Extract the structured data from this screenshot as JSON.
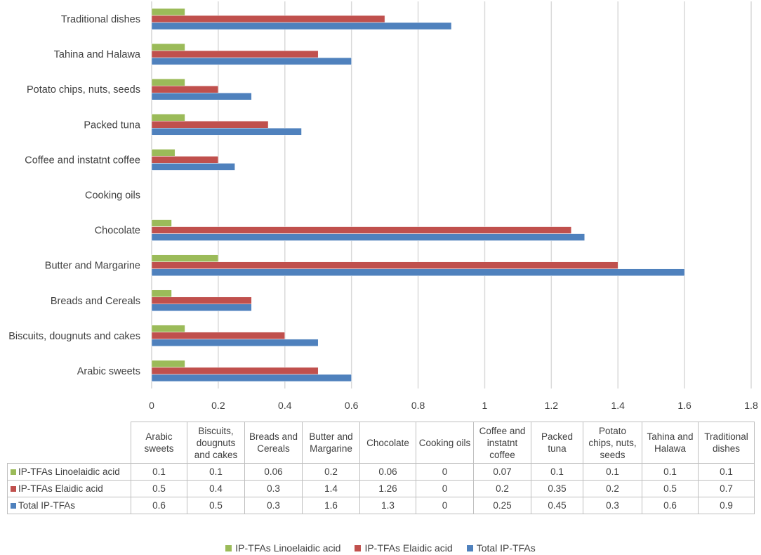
{
  "colors": {
    "linoelaidic": "#9bbb59",
    "elaidic": "#c0504d",
    "total": "#4f81bd",
    "grid": "#d9d9d9"
  },
  "chart_data": {
    "type": "bar",
    "orientation": "horizontal",
    "categories": [
      "Arabic sweets",
      "Biscuits, dougnuts and cakes",
      "Breads and Cereals",
      "Butter and Margarine",
      "Chocolate",
      "Cooking oils",
      "Coffee and instatnt coffee",
      "Packed tuna",
      "Potato chips, nuts, seeds",
      "Tahina and Halawa",
      "Traditional dishes"
    ],
    "series": [
      {
        "name": "IP-TFAs Linoelaidic acid",
        "color": "#9bbb59",
        "values": [
          0.1,
          0.1,
          0.06,
          0.2,
          0.06,
          0,
          0.07,
          0.1,
          0.1,
          0.1,
          0.1
        ]
      },
      {
        "name": "IP-TFAs Elaidic acid",
        "color": "#c0504d",
        "values": [
          0.5,
          0.4,
          0.3,
          1.4,
          1.26,
          0,
          0.2,
          0.35,
          0.2,
          0.5,
          0.7
        ]
      },
      {
        "name": "Total IP-TFAs",
        "color": "#4f81bd",
        "values": [
          0.6,
          0.5,
          0.3,
          1.6,
          1.3,
          0,
          0.25,
          0.45,
          0.3,
          0.6,
          0.9
        ]
      }
    ],
    "xlim": [
      0,
      1.8
    ],
    "xticks": [
      0,
      0.2,
      0.4,
      0.6,
      0.8,
      1,
      1.2,
      1.4,
      1.6,
      1.8
    ],
    "grid": true,
    "legend": "bottom",
    "data_table": {
      "column_headers": [
        [
          "Arabic",
          "sweets"
        ],
        [
          "Biscuits,",
          "dougnuts",
          "and cakes"
        ],
        [
          "Breads and",
          "Cereals"
        ],
        [
          "Butter and",
          "Margarine"
        ],
        [
          "Chocolate"
        ],
        [
          "Cooking oils"
        ],
        [
          "Coffee and",
          "instatnt",
          "coffee"
        ],
        [
          "Packed",
          "tuna"
        ],
        [
          "Potato",
          "chips, nuts,",
          "seeds"
        ],
        [
          "Tahina and",
          "Halawa"
        ],
        [
          "Traditional",
          "dishes"
        ]
      ]
    }
  }
}
